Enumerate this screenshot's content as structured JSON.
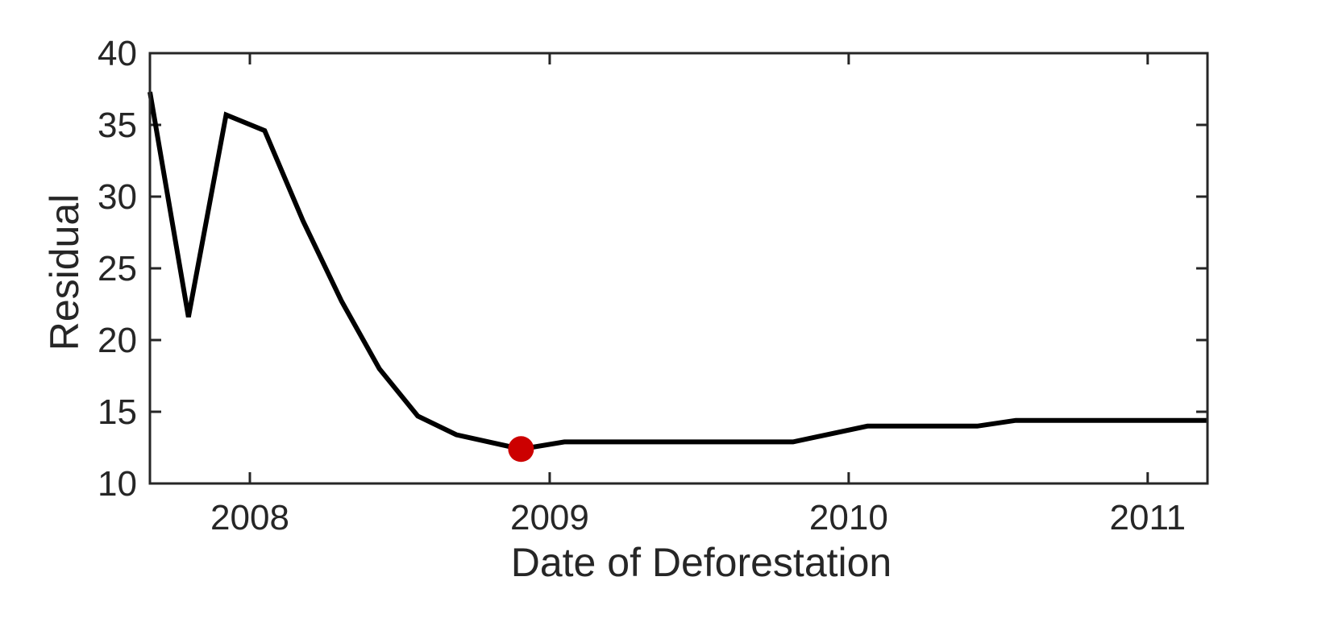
{
  "chart_data": {
    "type": "line",
    "title": "",
    "xlabel": "Date of Deforestation",
    "ylabel": "Residual",
    "xlim": [
      "2007-09-01",
      "2011-03-15"
    ],
    "ylim": [
      10,
      40
    ],
    "x_ticks": [
      "2008",
      "2009",
      "2010",
      "2011"
    ],
    "y_ticks": [
      "10",
      "15",
      "20",
      "25",
      "30",
      "35",
      "40"
    ],
    "grid": false,
    "box": true,
    "series": [
      {
        "color": "#000000",
        "points": [
          {
            "x": "2007-09-01",
            "y": 37.3
          },
          {
            "x": "2007-10-18",
            "y": 21.6
          },
          {
            "x": "2007-12-03",
            "y": 35.7
          },
          {
            "x": "2008-01-19",
            "y": 34.6
          },
          {
            "x": "2008-03-06",
            "y": 28.3
          },
          {
            "x": "2008-04-22",
            "y": 22.7
          },
          {
            "x": "2008-06-07",
            "y": 18.0
          },
          {
            "x": "2008-07-24",
            "y": 14.7
          },
          {
            "x": "2008-09-09",
            "y": 13.4
          },
          {
            "x": "2008-11-27",
            "y": 12.4
          },
          {
            "x": "2009-01-19",
            "y": 12.9
          },
          {
            "x": "2009-10-25",
            "y": 12.9
          },
          {
            "x": "2010-01-24",
            "y": 14.0
          },
          {
            "x": "2010-06-07",
            "y": 14.0
          },
          {
            "x": "2010-07-24",
            "y": 14.4
          },
          {
            "x": "2011-03-15",
            "y": 14.4
          }
        ]
      }
    ],
    "highlight": {
      "x": "2008-11-27",
      "y": 12.4,
      "color": "#cc0000"
    }
  }
}
